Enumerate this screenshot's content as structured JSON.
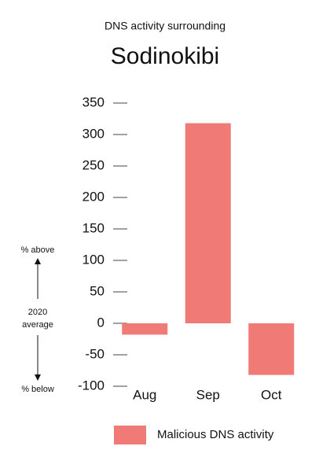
{
  "chart_data": {
    "type": "bar",
    "subtitle": "DNS activity surrounding",
    "title": "Sodinokibi",
    "categories": [
      "Aug",
      "Sep",
      "Oct"
    ],
    "series": [
      {
        "name": "Malicious DNS activity",
        "color": "#f07b76",
        "values": [
          -18,
          318,
          -82
        ]
      }
    ],
    "ylim": [
      -100,
      350
    ],
    "yticks": [
      -100,
      -50,
      0,
      50,
      100,
      150,
      200,
      250,
      300,
      350
    ],
    "annotations": {
      "above": "% above",
      "average": [
        "2020",
        "average"
      ],
      "below": "% below"
    }
  }
}
